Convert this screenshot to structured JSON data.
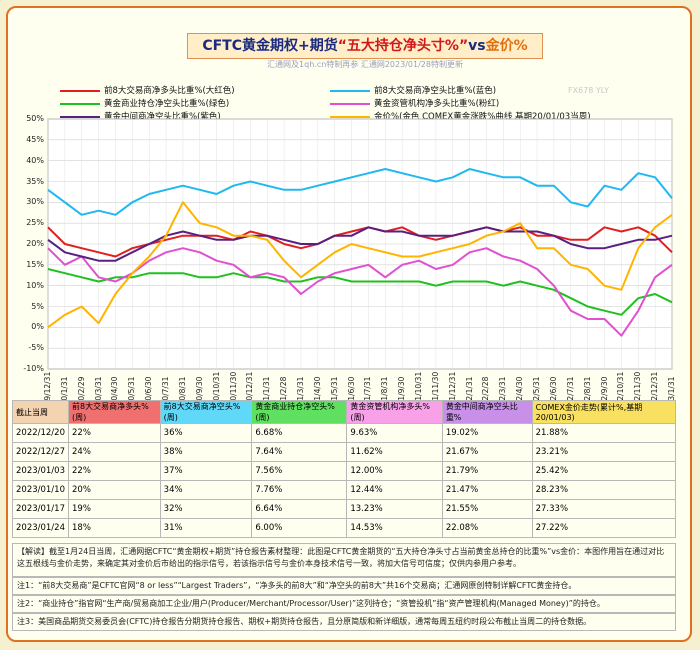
{
  "title": {
    "part1": "CFTC黄金期权+期货",
    "part2": "“五大持仓净头寸%”",
    "part3": "vs",
    "part4": "金价%"
  },
  "subtitle": "汇通网及1qh.cn特制再参    汇通网2023/01/28特制更新",
  "watermarks": [
    "FX678 YLY",
    "fx678",
    "fx678",
    "fx678",
    "fx678"
  ],
  "legend": [
    {
      "label": "前8大交易商净多头比重%(大红色)",
      "color": "#e02020"
    },
    {
      "label": "前8大交易商净空头比重%(蓝色)",
      "color": "#20b8f0"
    },
    {
      "label": "黄金商业持仓净空头比重%(绿色)",
      "color": "#20c020"
    },
    {
      "label": "黄金资管机构净多头比重%(粉红)",
      "color": "#e050d0"
    },
    {
      "label": "黄金中间商净空头比重%(紫色)",
      "color": "#5a2080"
    },
    {
      "label": "金价%(金色 COMEX黄金涨跌%曲线 基期20/01/03当周)",
      "color": "#ffb400"
    }
  ],
  "chart_data": {
    "type": "line",
    "ylim": [
      -10,
      50
    ],
    "yticks": [
      "50%",
      "45%",
      "40%",
      "35%",
      "30%",
      "25%",
      "20%",
      "15%",
      "10%",
      "5%",
      "0%",
      "-5%",
      "-10%"
    ],
    "xticks": [
      "2019/12/31",
      "2020/1/31",
      "2020/2/29",
      "2020/3/31",
      "2020/4/30",
      "2020/5/31",
      "2020/6/30",
      "2020/7/31",
      "2020/8/31",
      "2020/9/30",
      "2020/10/31",
      "2020/11/30",
      "2020/12/31",
      "2021/1/31",
      "2021/2/28",
      "2021/3/31",
      "2021/4/30",
      "2021/5/31",
      "2021/6/30",
      "2021/7/31",
      "2021/8/31",
      "2021/9/30",
      "2021/10/31",
      "2021/11/30",
      "2021/12/31",
      "2022/1/31",
      "2022/2/28",
      "2022/3/31",
      "2022/4/30",
      "2022/5/31",
      "2022/6/30",
      "2022/7/31",
      "2022/8/31",
      "2022/9/30",
      "2022/10/31",
      "2022/11/30",
      "2022/12/31",
      "2023/1/31"
    ],
    "series": [
      {
        "name": "前8大交易商净多头比重%(大红色)",
        "color": "#e02020",
        "values": [
          24,
          20,
          19,
          18,
          17,
          19,
          20,
          21,
          22,
          22,
          22,
          21,
          23,
          22,
          20,
          19,
          20,
          22,
          23,
          24,
          23,
          24,
          22,
          21,
          22,
          23,
          24,
          23,
          24,
          22,
          22,
          21,
          21,
          24,
          23,
          24,
          22,
          18
        ]
      },
      {
        "name": "前8大交易商净空头比重%(蓝色)",
        "color": "#20b8f0",
        "values": [
          33,
          30,
          27,
          28,
          27,
          30,
          32,
          33,
          34,
          33,
          32,
          34,
          35,
          34,
          33,
          33,
          34,
          35,
          36,
          37,
          38,
          37,
          36,
          35,
          36,
          38,
          37,
          36,
          36,
          34,
          34,
          30,
          29,
          34,
          33,
          37,
          36,
          31
        ]
      },
      {
        "name": "黄金商业持仓净空头比重%(绿色)",
        "color": "#20c020",
        "values": [
          14,
          13,
          12,
          11,
          12,
          12,
          13,
          13,
          13,
          12,
          12,
          13,
          12,
          12,
          11,
          11,
          12,
          12,
          11,
          11,
          11,
          11,
          11,
          10,
          11,
          11,
          11,
          10,
          11,
          10,
          9,
          7,
          5,
          4,
          3,
          7,
          8,
          6
        ]
      },
      {
        "name": "黄金资管机构净多头比重%(粉红)",
        "color": "#e050d0",
        "values": [
          19,
          15,
          17,
          12,
          11,
          13,
          16,
          18,
          19,
          18,
          16,
          15,
          12,
          13,
          12,
          8,
          11,
          13,
          14,
          15,
          12,
          15,
          16,
          14,
          15,
          18,
          19,
          17,
          16,
          14,
          10,
          4,
          2,
          2,
          -2,
          4,
          12,
          15
        ]
      },
      {
        "name": "黄金中间商净空头比重%(紫色)",
        "color": "#5a2080",
        "values": [
          21,
          18,
          17,
          16,
          16,
          18,
          20,
          22,
          23,
          22,
          21,
          21,
          22,
          22,
          21,
          20,
          20,
          22,
          22,
          24,
          23,
          23,
          22,
          22,
          22,
          23,
          24,
          23,
          23,
          23,
          22,
          20,
          19,
          19,
          20,
          21,
          21,
          22
        ]
      },
      {
        "name": "金价%(金色 COMEX黄金涨跌%曲线 基期20/01/03当周)",
        "color": "#ffb400",
        "values": [
          0,
          3,
          5,
          1,
          8,
          13,
          17,
          22,
          30,
          25,
          24,
          22,
          22,
          21,
          16,
          12,
          15,
          18,
          20,
          19,
          18,
          17,
          17,
          18,
          19,
          20,
          22,
          23,
          25,
          19,
          19,
          15,
          14,
          10,
          9,
          19,
          24,
          27
        ]
      }
    ]
  },
  "table": {
    "headers": [
      "截止当周",
      "前8大交易商净多头%(周)",
      "前8大交易商净空头%(周)",
      "黄金商业持仓净空头%(周)",
      "黄金资管机构净多头%(周)",
      "黄金中间商净空头比重%",
      "COMEX金价走势(累计%,基期20/01/03)"
    ],
    "header_colors": [
      "#f3d3b0",
      "#f07070",
      "#60d8f8",
      "#60e060",
      "#f8a0e8",
      "#c890e8",
      "#f8e060"
    ],
    "rows": [
      [
        "2022/12/20",
        "22%",
        "36%",
        "6.68%",
        "9.63%",
        "19.02%",
        "21.88%"
      ],
      [
        "2022/12/27",
        "24%",
        "38%",
        "7.64%",
        "11.62%",
        "21.67%",
        "23.21%"
      ],
      [
        "2023/01/03",
        "22%",
        "37%",
        "7.56%",
        "12.00%",
        "21.79%",
        "25.42%"
      ],
      [
        "2023/01/10",
        "20%",
        "34%",
        "7.76%",
        "12.44%",
        "21.47%",
        "28.23%"
      ],
      [
        "2023/01/17",
        "19%",
        "32%",
        "6.64%",
        "13.23%",
        "21.55%",
        "27.33%"
      ],
      [
        "2023/01/24",
        "18%",
        "31%",
        "6.00%",
        "14.53%",
        "22.08%",
        "27.22%"
      ]
    ]
  },
  "notes": {
    "explain": "【解读】截至1月24日当周，汇通网据CFTC“黄金期权+期货”持仓报告素材整理：此图是CFTC黄金期货的“五大持仓净头寸占当前黄金总持仓的比重%”vs金价：本图作用旨在通过对比这五根线与金价走势，来确定其对金价后市给出的指示信号，若该指示信号与金价本身技术信号一致，将加大信号可信度；仅供内参用户参考。",
    "note1": "注1：“前8大交易商”是CFTC官网“8 or less”“Largest Traders”，“净多头的前8大”和“净空头的前8大”共16个交易商；汇通网原创特制详解CFTC黄金持仓。",
    "note2": "注2：“商业持仓”指官网“生产商/贸易商加工企业/用户(Producer/Merchant/Processor/User)”这列持仓；“资管投机”指“资产管理机构(Managed Money)”的持仓。",
    "note3": "注3：美国商品期货交易委员会(CFTC)持仓报告分期货持仓报告、期权+期货持仓报告，且分原简版和新详细版，通常每周五纽约时段公布截止当周二的持仓数据。"
  }
}
